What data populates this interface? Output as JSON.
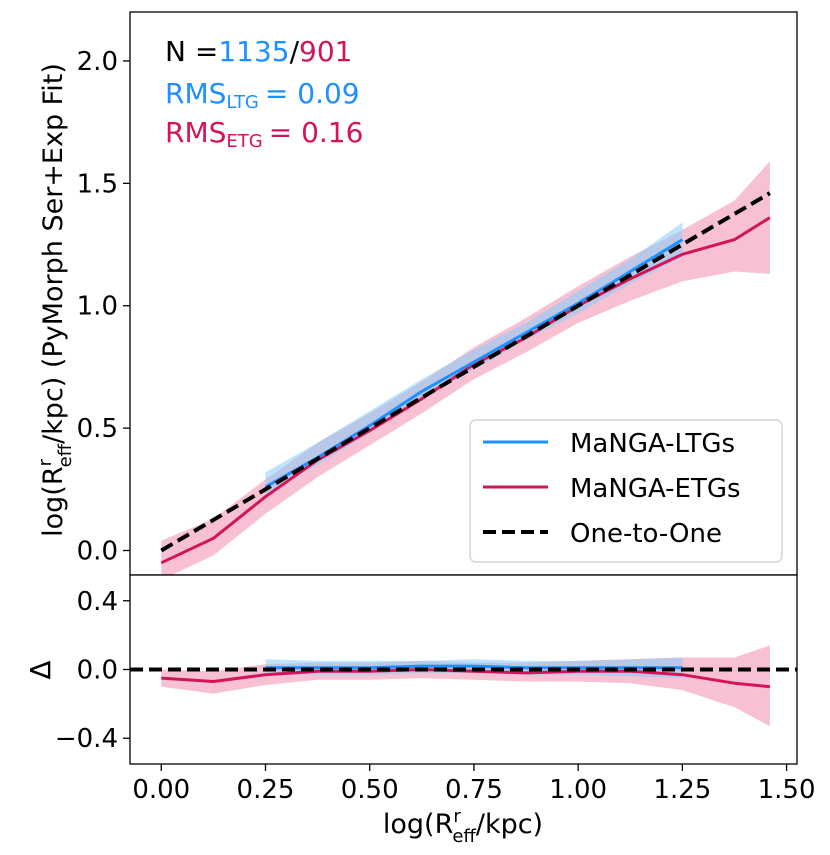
{
  "chart_data": [
    {
      "type": "line",
      "panel": "main",
      "ylabel_pre": "log(R",
      "ylabel_sup": "r",
      "ylabel_sub": "eff",
      "ylabel_post": "/kpc) (PyMorph Ser+Exp Fit)",
      "xlim": [
        -0.075,
        1.525
      ],
      "ylim": [
        -0.1,
        2.2
      ],
      "yticks": [
        0.0,
        0.5,
        1.0,
        1.5,
        2.0
      ],
      "ytick_labels": [
        "0.0",
        "0.5",
        "1.0",
        "1.5",
        "2.0"
      ],
      "annotation": {
        "n_prefix": "N =",
        "n_ltg": "1135",
        "n_sep": "/",
        "n_etg": "901",
        "rms_label": "RMS",
        "rms_ltg_sub": "LTG",
        "rms_ltg_value": "= 0.09",
        "rms_etg_sub": "ETG",
        "rms_etg_value": "= 0.16"
      },
      "legend": {
        "placement": "lower-right",
        "entries": [
          "MaNGA-LTGs",
          "MaNGA-ETGs",
          "One-to-One"
        ]
      },
      "series": [
        {
          "name": "MaNGA-LTGs",
          "color": "#1e90ff",
          "band_color": "#87cefa",
          "x": [
            0.25,
            0.375,
            0.5,
            0.625,
            0.75,
            0.875,
            1.0,
            1.125,
            1.25
          ],
          "y": [
            0.26,
            0.38,
            0.51,
            0.65,
            0.77,
            0.89,
            1.01,
            1.14,
            1.27
          ],
          "lo": [
            0.23,
            0.35,
            0.48,
            0.62,
            0.74,
            0.86,
            0.97,
            1.09,
            1.2
          ],
          "hi": [
            0.32,
            0.44,
            0.57,
            0.7,
            0.82,
            0.93,
            1.06,
            1.19,
            1.34
          ]
        },
        {
          "name": "MaNGA-ETGs",
          "color": "#d4145a",
          "band_color": "#f4a6c0",
          "x": [
            0.0,
            0.125,
            0.25,
            0.375,
            0.5,
            0.625,
            0.75,
            0.875,
            1.0,
            1.125,
            1.25,
            1.375,
            1.46
          ],
          "y": [
            -0.05,
            0.05,
            0.22,
            0.37,
            0.49,
            0.62,
            0.76,
            0.87,
            1.0,
            1.11,
            1.21,
            1.27,
            1.36
          ],
          "lo": [
            -0.12,
            -0.02,
            0.15,
            0.3,
            0.43,
            0.56,
            0.7,
            0.81,
            0.93,
            1.02,
            1.1,
            1.14,
            1.13
          ],
          "hi": [
            0.04,
            0.13,
            0.29,
            0.44,
            0.56,
            0.69,
            0.83,
            0.95,
            1.08,
            1.2,
            1.31,
            1.43,
            1.59
          ]
        },
        {
          "name": "One-to-One",
          "color": "#000000",
          "style": "dashed",
          "x": [
            0.0,
            1.46
          ],
          "y": [
            0.0,
            1.46
          ]
        }
      ]
    },
    {
      "type": "line",
      "panel": "residual",
      "xlabel_pre": "log(R",
      "xlabel_sup": "r",
      "xlabel_sub": "eff",
      "xlabel_post": "/kpc)",
      "ylabel": "Δ",
      "xlim": [
        -0.075,
        1.525
      ],
      "ylim": [
        -0.55,
        0.55
      ],
      "xticks": [
        0.0,
        0.25,
        0.5,
        0.75,
        1.0,
        1.25,
        1.5
      ],
      "xtick_labels": [
        "0.00",
        "0.25",
        "0.50",
        "0.75",
        "1.00",
        "1.25",
        "1.50"
      ],
      "yticks": [
        -0.4,
        0.0,
        0.4
      ],
      "ytick_labels": [
        "−0.4",
        "0.0",
        "0.4"
      ],
      "series": [
        {
          "name": "MaNGA-LTGs",
          "color": "#1e90ff",
          "band_color": "#87cefa",
          "x": [
            0.25,
            0.375,
            0.5,
            0.625,
            0.75,
            0.875,
            1.0,
            1.125,
            1.25
          ],
          "y": [
            0.01,
            0.01,
            0.01,
            0.02,
            0.02,
            0.01,
            0.01,
            0.01,
            0.01
          ],
          "lo": [
            -0.03,
            -0.03,
            -0.03,
            -0.02,
            -0.02,
            -0.03,
            -0.03,
            -0.04,
            -0.05
          ],
          "hi": [
            0.06,
            0.05,
            0.05,
            0.05,
            0.06,
            0.05,
            0.05,
            0.06,
            0.07
          ]
        },
        {
          "name": "MaNGA-ETGs",
          "color": "#d4145a",
          "band_color": "#f4a6c0",
          "x": [
            0.0,
            0.125,
            0.25,
            0.375,
            0.5,
            0.625,
            0.75,
            0.875,
            1.0,
            1.125,
            1.25,
            1.375,
            1.46
          ],
          "y": [
            -0.05,
            -0.07,
            -0.03,
            -0.01,
            -0.01,
            0.0,
            -0.01,
            -0.02,
            -0.01,
            -0.01,
            -0.03,
            -0.08,
            -0.1
          ],
          "lo": [
            -0.1,
            -0.14,
            -0.09,
            -0.06,
            -0.06,
            -0.05,
            -0.06,
            -0.07,
            -0.07,
            -0.08,
            -0.12,
            -0.22,
            -0.33
          ],
          "hi": [
            0.0,
            -0.01,
            0.03,
            0.04,
            0.04,
            0.05,
            0.04,
            0.04,
            0.05,
            0.06,
            0.07,
            0.07,
            0.14
          ]
        },
        {
          "name": "Zero",
          "color": "#000000",
          "style": "dashed",
          "x": [
            -0.075,
            1.525
          ],
          "y": [
            0.0,
            0.0
          ]
        }
      ]
    }
  ]
}
